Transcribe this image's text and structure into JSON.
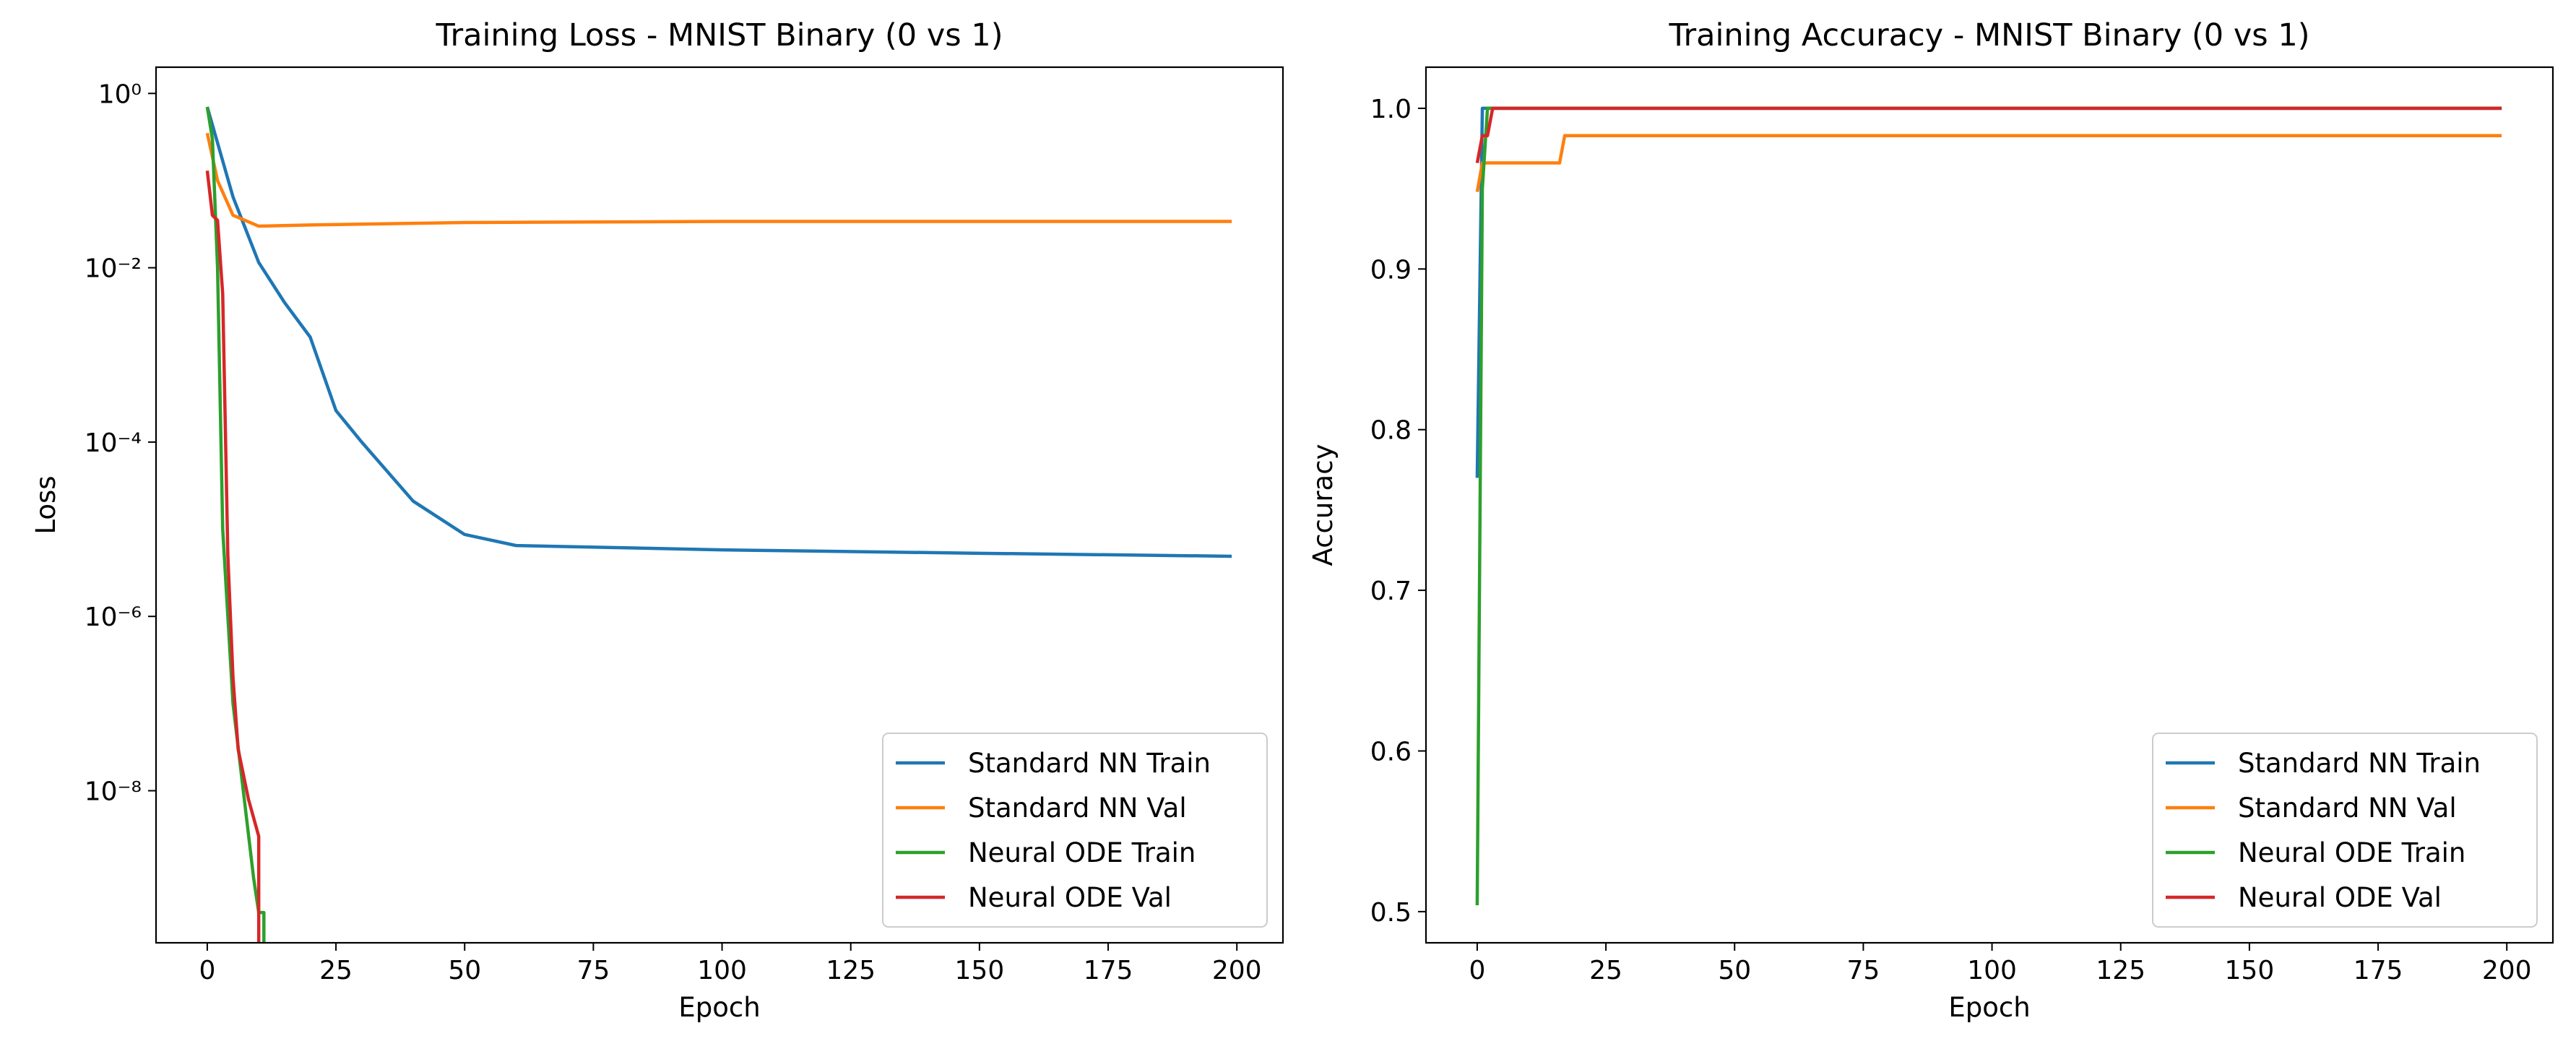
{
  "chart_data": [
    {
      "type": "line",
      "title": "Training Loss - MNIST Binary (0 vs 1)",
      "xlabel": "Epoch",
      "ylabel": "Loss",
      "log_y": true,
      "grid": false,
      "legend": "lower right",
      "xlim": [
        -9.95,
        208.95
      ],
      "xticks": [
        0,
        25,
        50,
        75,
        100,
        125,
        150,
        175,
        200
      ],
      "ylim": [
        1.8e-10,
        2
      ],
      "yticks": [
        {
          "value": 1e-08,
          "label": "10⁻⁸"
        },
        {
          "value": 1e-06,
          "label": "10⁻⁶"
        },
        {
          "value": 0.0001,
          "label": "10⁻⁴"
        },
        {
          "value": 0.01,
          "label": "10⁻²"
        },
        {
          "value": 1,
          "label": "10⁰"
        }
      ],
      "series": [
        {
          "name": "Standard NN Train",
          "color": "#1f77b4",
          "x": [
            0,
            5,
            10,
            15,
            20,
            25,
            30,
            40,
            50,
            60,
            100,
            150,
            199
          ],
          "values": [
            0.7,
            0.065,
            0.0115,
            0.004,
            0.0016,
            0.00023,
            0.0001,
            2.1e-05,
            8.7e-06,
            6.5e-06,
            5.8e-06,
            5.3e-06,
            4.9e-06
          ]
        },
        {
          "name": "Standard NN Val",
          "color": "#ff7f0e",
          "x": [
            0,
            2,
            5,
            10,
            20,
            50,
            100,
            199
          ],
          "values": [
            0.35,
            0.1,
            0.04,
            0.03,
            0.031,
            0.033,
            0.034,
            0.034
          ]
        },
        {
          "name": "Neural ODE Train",
          "color": "#2ca02c",
          "x": [
            0,
            1,
            2,
            3,
            5,
            7,
            9,
            10,
            11,
            11
          ],
          "values": [
            0.7,
            0.3,
            0.01,
            1e-05,
            1e-07,
            1e-08,
            1e-09,
            4e-10,
            4e-10,
            1e-11
          ]
        },
        {
          "name": "Neural ODE Val",
          "color": "#d62728",
          "x": [
            0,
            1,
            2,
            3,
            4,
            5,
            6,
            8,
            10,
            10
          ],
          "values": [
            0.13,
            0.04,
            0.035,
            0.005,
            5e-06,
            2e-07,
            3e-08,
            8e-09,
            3e-09,
            1e-11
          ]
        }
      ]
    },
    {
      "type": "line",
      "title": "Training Accuracy - MNIST Binary (0 vs 1)",
      "xlabel": "Epoch",
      "ylabel": "Accuracy",
      "log_y": false,
      "grid": false,
      "legend": "lower right",
      "xlim": [
        -9.95,
        208.95
      ],
      "xticks": [
        0,
        25,
        50,
        75,
        100,
        125,
        150,
        175,
        200
      ],
      "ylim": [
        0.4806,
        1.0256
      ],
      "yticks": [
        0.5,
        0.6,
        0.7,
        0.8,
        0.9,
        {
          "value": 1.0,
          "label": "1.0"
        }
      ],
      "series": [
        {
          "name": "Standard NN Train",
          "color": "#1f77b4",
          "x": [
            0,
            1,
            199
          ],
          "values": [
            0.77,
            1.0,
            1.0
          ]
        },
        {
          "name": "Standard NN Val",
          "color": "#ff7f0e",
          "x": [
            0,
            1,
            16,
            17,
            199
          ],
          "values": [
            0.948,
            0.966,
            0.966,
            0.983,
            0.983
          ]
        },
        {
          "name": "Neural ODE Train",
          "color": "#2ca02c",
          "x": [
            0,
            1,
            2,
            199
          ],
          "values": [
            0.504,
            0.95,
            1.0,
            1.0
          ]
        },
        {
          "name": "Neural ODE Val",
          "color": "#d62728",
          "x": [
            0,
            1,
            2,
            3,
            199
          ],
          "values": [
            0.966,
            0.983,
            0.983,
            1.0,
            1.0
          ]
        }
      ]
    }
  ]
}
